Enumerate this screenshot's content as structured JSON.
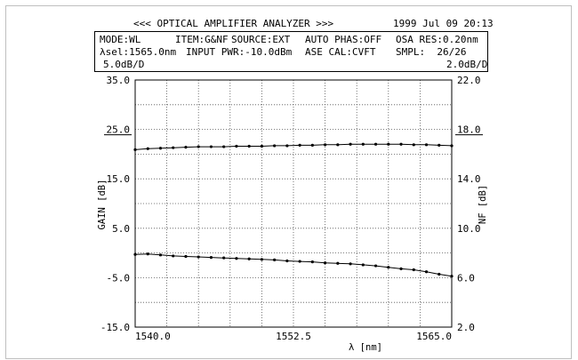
{
  "header": {
    "title": "<<< OPTICAL AMPLIFIER ANALYZER >>>",
    "datetime": "1999 Jul 09 20:13"
  },
  "info": {
    "mode": "MODE:WL",
    "item": "ITEM:G&NF",
    "source": "SOURCE:EXT",
    "auto_phas": "AUTO PHAS:OFF",
    "osa_res": "OSA RES:0.20nm",
    "lambda_sel": "λsel:1565.0nm",
    "input_pwr": "INPUT PWR:-10.0dBm",
    "ase_cal": "ASE CAL:CVFT",
    "smpl": "SMPL:  26/26",
    "left_scale": "5.0dB/D",
    "right_scale": "2.0dB/D"
  },
  "chart_data": {
    "type": "line",
    "xlabel": "λ [nm]",
    "ylabel_left": "GAIN [dB]",
    "ylabel_right": "NF [dB]",
    "xlim": [
      1540.0,
      1565.0
    ],
    "ylim_left": [
      -15.0,
      35.0
    ],
    "ylim_right": [
      2.0,
      22.0
    ],
    "x_tick_labels": [
      "1540.0",
      "1552.5",
      "1565.0"
    ],
    "y_left_tick_labels": [
      "35.0",
      "25.0",
      "15.0",
      "5.0",
      "-5.0",
      "-15.0"
    ],
    "y_right_tick_labels": [
      "22.0",
      "18.0",
      "14.0",
      "10.0",
      "6.0",
      "2.0"
    ],
    "grid": true,
    "x": [
      1540.0,
      1541.0,
      1542.0,
      1543.0,
      1544.0,
      1545.0,
      1546.0,
      1547.0,
      1548.0,
      1549.0,
      1550.0,
      1551.0,
      1552.0,
      1553.0,
      1554.0,
      1555.0,
      1556.0,
      1557.0,
      1558.0,
      1559.0,
      1560.0,
      1561.0,
      1562.0,
      1563.0,
      1564.0,
      1565.0
    ],
    "series": [
      {
        "axis": "left",
        "values": [
          20.9,
          21.1,
          21.2,
          21.3,
          21.4,
          21.5,
          21.5,
          21.5,
          21.6,
          21.6,
          21.6,
          21.7,
          21.7,
          21.8,
          21.8,
          21.9,
          21.9,
          22.0,
          22.0,
          22.0,
          22.0,
          22.0,
          21.9,
          21.9,
          21.8,
          21.7
        ]
      },
      {
        "axis": "left",
        "values": [
          -0.3,
          -0.2,
          -0.4,
          -0.6,
          -0.7,
          -0.8,
          -0.9,
          -1.0,
          -1.1,
          -1.2,
          -1.3,
          -1.4,
          -1.6,
          -1.7,
          -1.8,
          -2.0,
          -2.1,
          -2.2,
          -2.4,
          -2.6,
          -2.9,
          -3.2,
          -3.4,
          -3.8,
          -4.3,
          -4.7
        ]
      }
    ]
  }
}
